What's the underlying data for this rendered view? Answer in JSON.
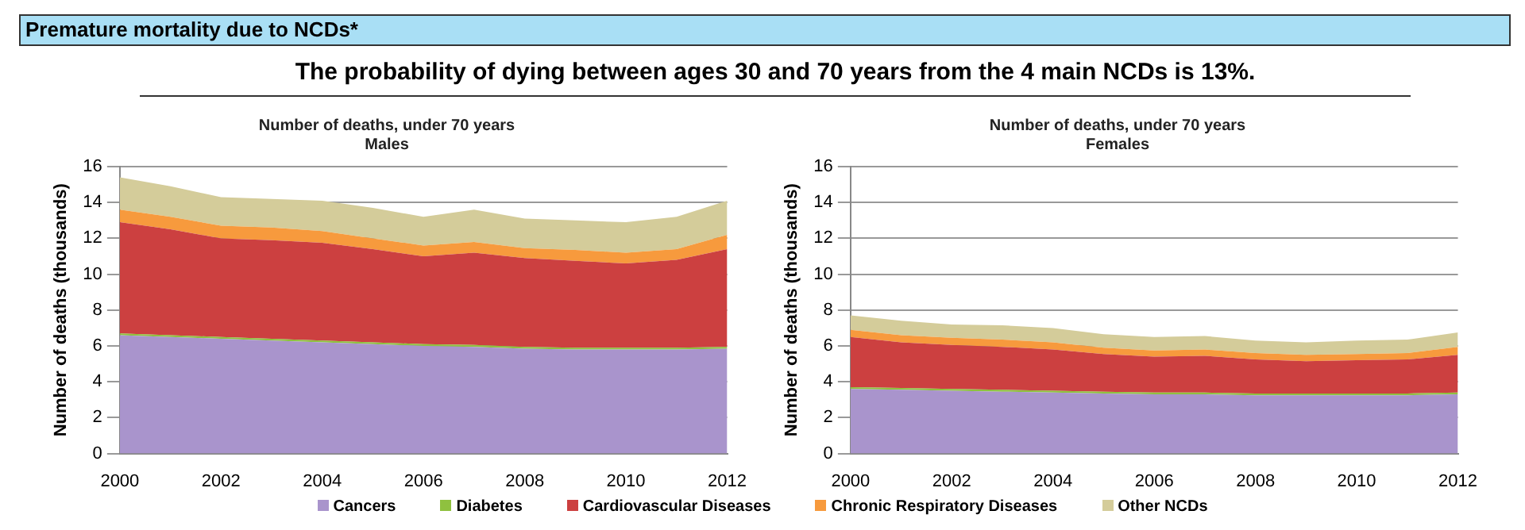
{
  "chart_data": [
    {
      "type": "area",
      "stacked": true,
      "title": "Number of deaths, under 70 years",
      "subtitle": "Males",
      "ylabel": "Number of deaths (thousands)",
      "annotations": [
        "Premature mortality due to NCDs*",
        "The probability of dying between ages 30 and 70 years from the 4 main NCDs is 13%."
      ],
      "x": [
        2000,
        2001,
        2002,
        2003,
        2004,
        2005,
        2006,
        2007,
        2008,
        2009,
        2010,
        2011,
        2012
      ],
      "xlim": [
        2000,
        2012
      ],
      "xticks": [
        2000,
        2002,
        2004,
        2006,
        2008,
        2010,
        2012
      ],
      "ylim": [
        0,
        16
      ],
      "yticks": [
        0,
        2,
        4,
        6,
        8,
        10,
        12,
        14,
        16
      ],
      "grid": "y",
      "legend": "bottom",
      "series": [
        {
          "name": "Cancers",
          "color": "#a994cc",
          "values": [
            6.6,
            6.5,
            6.4,
            6.3,
            6.2,
            6.1,
            6.0,
            5.95,
            5.85,
            5.8,
            5.8,
            5.8,
            5.85
          ]
        },
        {
          "name": "Diabetes",
          "color": "#8fc13f",
          "values": [
            0.1,
            0.1,
            0.1,
            0.1,
            0.1,
            0.1,
            0.1,
            0.1,
            0.1,
            0.1,
            0.1,
            0.1,
            0.1
          ]
        },
        {
          "name": "Cardiovascular Diseases",
          "color": "#cc4040",
          "values": [
            6.2,
            5.9,
            5.5,
            5.5,
            5.45,
            5.2,
            4.9,
            5.15,
            4.95,
            4.85,
            4.7,
            4.9,
            5.45
          ]
        },
        {
          "name": "Chronic Respiratory Diseases",
          "color": "#f79a3d",
          "values": [
            0.7,
            0.7,
            0.7,
            0.7,
            0.65,
            0.6,
            0.6,
            0.6,
            0.55,
            0.6,
            0.6,
            0.6,
            0.8
          ]
        },
        {
          "name": "Other NCDs",
          "color": "#d4cc9a",
          "values": [
            1.8,
            1.7,
            1.6,
            1.6,
            1.7,
            1.7,
            1.6,
            1.8,
            1.65,
            1.65,
            1.7,
            1.8,
            1.9
          ]
        }
      ]
    },
    {
      "type": "area",
      "stacked": true,
      "title": "Number of deaths, under 70 years",
      "subtitle": "Females",
      "ylabel": "Number of deaths (thousands)",
      "x": [
        2000,
        2001,
        2002,
        2003,
        2004,
        2005,
        2006,
        2007,
        2008,
        2009,
        2010,
        2011,
        2012
      ],
      "xlim": [
        2000,
        2012
      ],
      "xticks": [
        2000,
        2002,
        2004,
        2006,
        2008,
        2010,
        2012
      ],
      "ylim": [
        0,
        16
      ],
      "yticks": [
        0,
        2,
        4,
        6,
        8,
        10,
        12,
        14,
        16
      ],
      "grid": "y",
      "series": [
        {
          "color": "#a994cc",
          "values": [
            3.6,
            3.55,
            3.5,
            3.45,
            3.4,
            3.35,
            3.3,
            3.3,
            3.25,
            3.25,
            3.25,
            3.25,
            3.3
          ]
        },
        {
          "color": "#8fc13f",
          "values": [
            0.1,
            0.1,
            0.1,
            0.1,
            0.1,
            0.1,
            0.1,
            0.1,
            0.1,
            0.1,
            0.1,
            0.1,
            0.1
          ]
        },
        {
          "color": "#cc4040",
          "values": [
            2.8,
            2.55,
            2.45,
            2.4,
            2.3,
            2.1,
            2.0,
            2.05,
            1.9,
            1.8,
            1.85,
            1.9,
            2.1
          ]
        },
        {
          "color": "#f79a3d",
          "values": [
            0.4,
            0.4,
            0.4,
            0.4,
            0.4,
            0.35,
            0.35,
            0.35,
            0.35,
            0.35,
            0.35,
            0.35,
            0.45
          ]
        },
        {
          "color": "#d4cc9a",
          "values": [
            0.8,
            0.8,
            0.75,
            0.8,
            0.8,
            0.75,
            0.75,
            0.75,
            0.7,
            0.7,
            0.75,
            0.75,
            0.8
          ]
        }
      ]
    }
  ]
}
